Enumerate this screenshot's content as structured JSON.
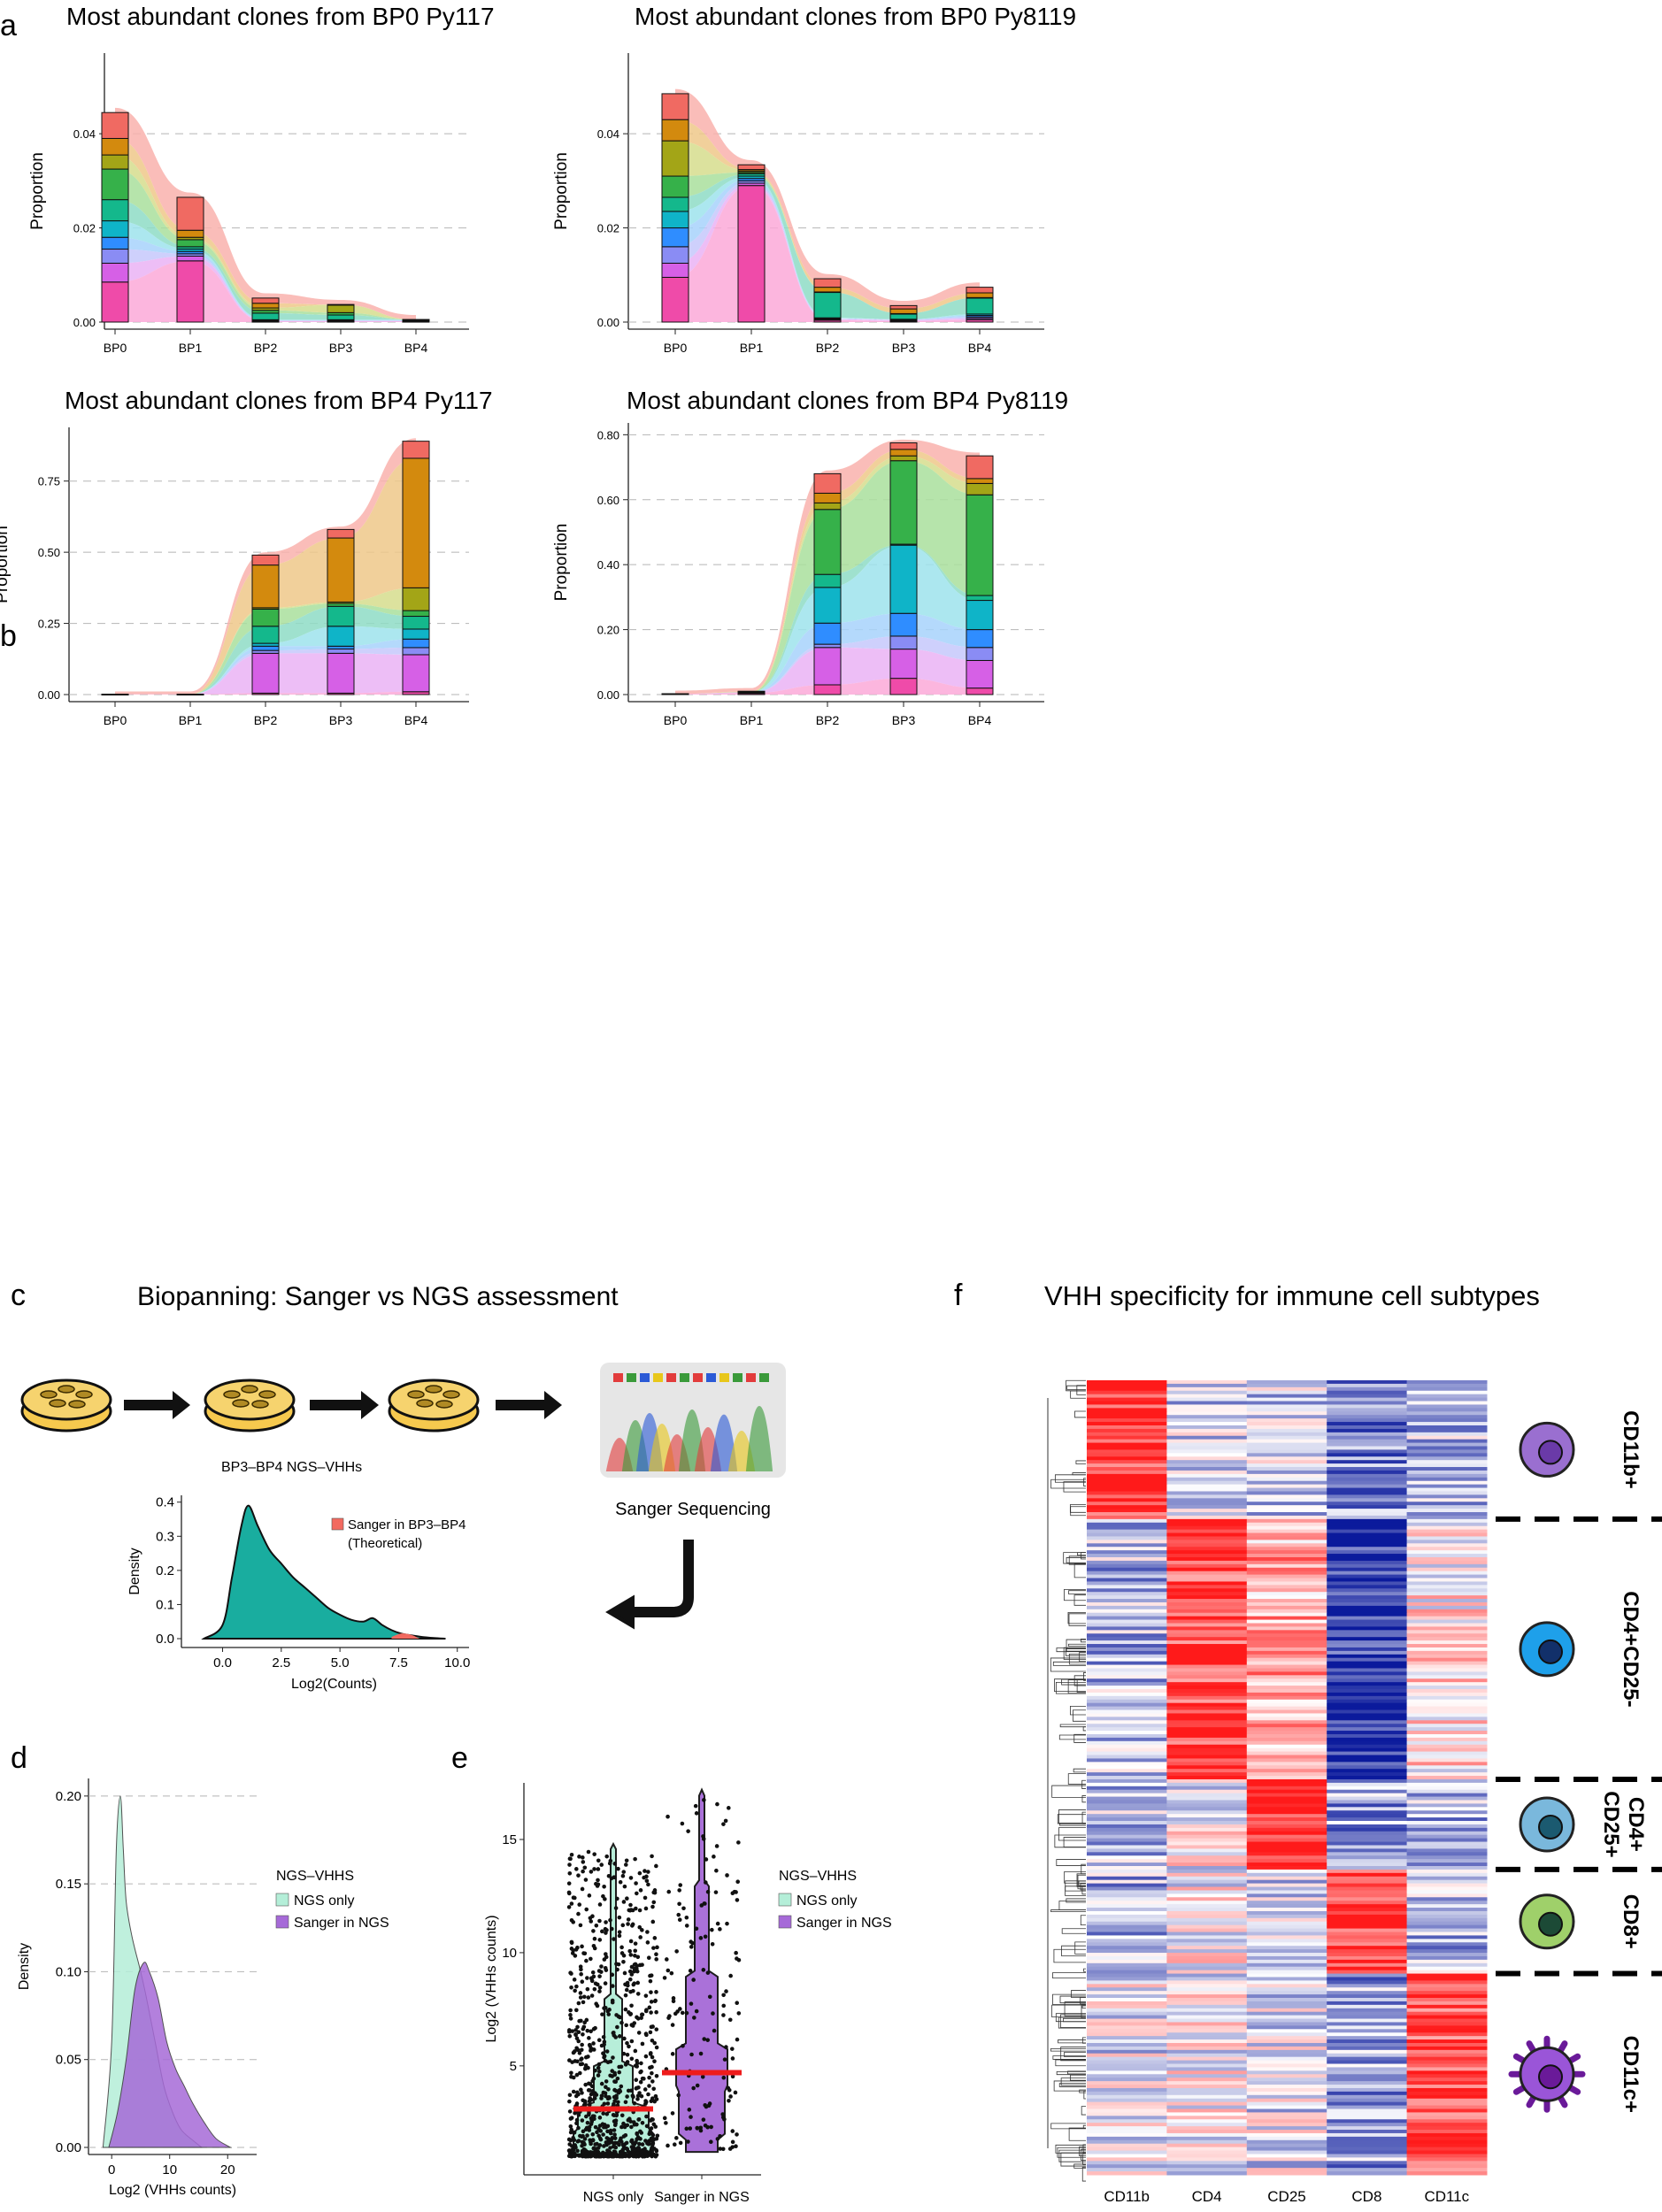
{
  "panel_letters": [
    "a",
    "b",
    "c",
    "d",
    "e",
    "f"
  ],
  "chart_data": [
    {
      "id": "a1",
      "type": "stacked-bar-alluvial",
      "title": "Most abundant clones from BP0 Py117",
      "categories": [
        "BP0",
        "BP1",
        "BP2",
        "BP3",
        "BP4"
      ],
      "ylabel": "Proportion",
      "yticks": [
        0,
        0.02,
        0.04
      ],
      "ytick_labels": [
        "0.00",
        "0.02",
        "0.04"
      ],
      "ylim": [
        0,
        0.056
      ],
      "segments": [
        [
          0.0085,
          0.004,
          0.003,
          0.0025,
          0.0035,
          0.0045,
          0.0065,
          0.003,
          0.0035,
          0.0055
        ],
        [
          0.013,
          0.001,
          0.0005,
          0.0005,
          0.0005,
          0.0005,
          0.0015,
          0.0005,
          0.0015,
          0.007
        ],
        [
          0.0001,
          0.0001,
          0.0001,
          0.0001,
          0.0001,
          0.0014,
          0.0006,
          0.0005,
          0.001,
          0.0011
        ],
        [
          0.0001,
          0.0001,
          0.0001,
          0.0001,
          0.0001,
          0.001,
          0.0005,
          0.0017,
          0.0,
          0.0
        ],
        [
          0.0001,
          0.0001,
          0.0001,
          0.0001,
          0.0001,
          0.0,
          0.0,
          0.0,
          0.0,
          0.0
        ]
      ],
      "stream_top_extra": 0.001
    },
    {
      "id": "a2",
      "type": "stacked-bar-alluvial",
      "title": "Most abundant clones from BP0 Py8119",
      "categories": [
        "BP0",
        "BP1",
        "BP2",
        "BP3",
        "BP4"
      ],
      "ylabel": "Proportion",
      "yticks": [
        0,
        0.02,
        0.04
      ],
      "ytick_labels": [
        "0.00",
        "0.02",
        "0.04"
      ],
      "ylim": [
        0,
        0.056
      ],
      "segments": [
        [
          0.0095,
          0.003,
          0.0035,
          0.004,
          0.0035,
          0.003,
          0.0045,
          0.0075,
          0.0045,
          0.0055
        ],
        [
          0.029,
          0.0005,
          0.0005,
          0.0005,
          0.0005,
          0.0005,
          0.0003,
          0.0003,
          0.0003,
          0.001
        ],
        [
          0.0004,
          0.0002,
          0.0001,
          0.0001,
          0.0001,
          0.0055,
          0.0,
          0.0,
          0.001,
          0.0018
        ],
        [
          0.0002,
          0.0002,
          0.0001,
          0.0001,
          0.0,
          0.0012,
          0.0,
          0.0,
          0.001,
          0.0007
        ],
        [
          0.0005,
          0.0003,
          0.0003,
          0.0003,
          0.0003,
          0.0035,
          0.0,
          0.0,
          0.001,
          0.0012
        ]
      ],
      "stream_top_extra": 0.001
    },
    {
      "id": "b1",
      "type": "stacked-bar-alluvial",
      "title": "Most abundant clones from BP4 Py117",
      "categories": [
        "BP0",
        "BP1",
        "BP2",
        "BP3",
        "BP4"
      ],
      "ylabel": "Proportion",
      "yticks": [
        0,
        0.25,
        0.5,
        0.75
      ],
      "ytick_labels": [
        "0.00",
        "0.25",
        "0.50",
        "0.75"
      ],
      "ylim": [
        0,
        0.92
      ],
      "segments": [
        [
          0.001,
          0.0,
          0.0,
          0.0,
          0.0,
          0.0,
          0.0,
          0.0,
          0.0,
          0.0
        ],
        [
          0.001,
          0.0,
          0.0,
          0.0,
          0.0,
          0.0,
          0.0,
          0.0,
          0.0,
          0.0
        ],
        [
          0.005,
          0.14,
          0.01,
          0.015,
          0.01,
          0.06,
          0.06,
          0.005,
          0.15,
          0.035
        ],
        [
          0.005,
          0.14,
          0.015,
          0.01,
          0.07,
          0.07,
          0.01,
          0.005,
          0.225,
          0.03
        ],
        [
          0.01,
          0.13,
          0.025,
          0.03,
          0.035,
          0.045,
          0.02,
          0.08,
          0.455,
          0.06
        ]
      ],
      "stream_top_extra": 0.01
    },
    {
      "id": "b2",
      "type": "stacked-bar-alluvial",
      "title": "Most abundant clones from BP4 Py8119",
      "categories": [
        "BP0",
        "BP1",
        "BP2",
        "BP3",
        "BP4"
      ],
      "ylabel": "Proportion",
      "yticks": [
        0,
        0.2,
        0.4,
        0.6,
        0.8
      ],
      "ytick_labels": [
        "0.00",
        "0.20",
        "0.40",
        "0.60",
        "0.80"
      ],
      "ylim": [
        0,
        0.82
      ],
      "segments": [
        [
          0.002,
          0.0,
          0.0,
          0.0,
          0.0,
          0.0,
          0.0,
          0.0,
          0.0,
          0.0
        ],
        [
          0.005,
          0.0,
          0.002,
          0.0,
          0.0,
          0.0,
          0.0,
          0.0,
          0.003,
          0.0
        ],
        [
          0.03,
          0.115,
          0.01,
          0.065,
          0.11,
          0.04,
          0.2,
          0.02,
          0.03,
          0.06
        ],
        [
          0.05,
          0.09,
          0.04,
          0.07,
          0.21,
          0.003,
          0.257,
          0.015,
          0.02,
          0.02
        ],
        [
          0.02,
          0.085,
          0.04,
          0.055,
          0.09,
          0.015,
          0.31,
          0.035,
          0.015,
          0.07
        ]
      ],
      "stream_top_extra": 0.01
    },
    {
      "id": "c",
      "type": "area",
      "title": "Biopanning: Sanger vs NGS assessment",
      "subtitle": "BP3–BP4 NGS–VHHs",
      "xlabel": "Log2(Counts)",
      "ylabel": "Density",
      "xlim": [
        -1,
        10.5
      ],
      "ylim": [
        0,
        0.42
      ],
      "xticks": [
        0,
        2.5,
        5,
        7.5,
        10
      ],
      "xtick_labels": [
        "0.0",
        "2.5",
        "5.0",
        "7.5",
        "10.0"
      ],
      "yticks": [
        0,
        0.1,
        0.2,
        0.3,
        0.4
      ],
      "ytick_labels": [
        "0.0",
        "0.1",
        "0.2",
        "0.3",
        "0.4"
      ],
      "x": [
        -0.8,
        0.0,
        0.4,
        0.8,
        1.1,
        1.5,
        2.0,
        2.5,
        3.0,
        3.5,
        4.0,
        4.5,
        5.0,
        5.5,
        6.0,
        6.4,
        6.8,
        7.2,
        7.6,
        8.0,
        8.5,
        9.0,
        9.5
      ],
      "y": [
        0.0,
        0.04,
        0.18,
        0.33,
        0.39,
        0.33,
        0.26,
        0.22,
        0.18,
        0.15,
        0.12,
        0.09,
        0.07,
        0.055,
        0.05,
        0.06,
        0.04,
        0.025,
        0.015,
        0.01,
        0.005,
        0.002,
        0.0
      ],
      "highlight": {
        "x": [
          7.2,
          7.6,
          8.0,
          8.4
        ],
        "y": [
          0.005,
          0.015,
          0.012,
          0.0
        ]
      },
      "legend": {
        "label_line1": "Sanger in BP3–BP4",
        "label_line2": "(Theoretical)",
        "color": "#f26a60"
      },
      "seq_label": "Sanger Sequencing",
      "color": "#19ad9f"
    },
    {
      "id": "d",
      "type": "area",
      "xlabel": "Log2 (VHHs counts)",
      "ylabel": "Density",
      "xlim": [
        -4,
        25
      ],
      "ylim": [
        0,
        0.21
      ],
      "xticks": [
        0,
        10,
        20
      ],
      "xtick_labels": [
        "0",
        "10",
        "20"
      ],
      "yticks": [
        0,
        0.05,
        0.1,
        0.15,
        0.2
      ],
      "ytick_labels": [
        "0.00",
        "0.05",
        "0.10",
        "0.15",
        "0.20"
      ],
      "series": [
        {
          "name": "NGS only",
          "color": "#b4eed8",
          "x": [
            -1.5,
            0,
            0.8,
            1.5,
            2.0,
            2.5,
            3.5,
            5.0,
            6.0,
            7.5,
            9.0,
            10.5,
            12,
            14,
            15.5
          ],
          "y": [
            0.0,
            0.06,
            0.17,
            0.2,
            0.17,
            0.14,
            0.12,
            0.1,
            0.085,
            0.06,
            0.035,
            0.02,
            0.01,
            0.004,
            0.0
          ]
        },
        {
          "name": "Sanger in NGS",
          "color": "#a66ad8",
          "x": [
            -0.5,
            1,
            2.5,
            4,
            5.5,
            6.5,
            8,
            9.5,
            11,
            12.5,
            14,
            16,
            18,
            20.5
          ],
          "y": [
            0.0,
            0.02,
            0.05,
            0.09,
            0.105,
            0.1,
            0.085,
            0.06,
            0.045,
            0.035,
            0.025,
            0.014,
            0.005,
            0.0
          ]
        }
      ],
      "legend_title": "NGS–VHHS"
    },
    {
      "id": "e",
      "type": "violin",
      "ylabel": "Log2 (VHHs counts)",
      "categories": [
        "NGS only",
        "Sanger in NGS"
      ],
      "ylim": [
        0.5,
        17.5
      ],
      "yticks": [
        5,
        10,
        15
      ],
      "ytick_labels": [
        "5",
        "10",
        "15"
      ],
      "medians": [
        3.1,
        4.7
      ],
      "colors": [
        "#b4eed8",
        "#a66ad8"
      ],
      "legend_title": "NGS–VHHS"
    },
    {
      "id": "f",
      "type": "heatmap",
      "title": "VHH specificity for immune cell subtypes",
      "columns": [
        "CD11b",
        "CD4",
        "CD25",
        "CD8",
        "CD11c"
      ],
      "groups": [
        {
          "label": "CD11b+",
          "label2": "",
          "rows": 40,
          "profile": [
            0.9,
            -0.2,
            -0.2,
            -0.5,
            -0.3
          ]
        },
        {
          "label": "CD4+CD25-",
          "label2": "",
          "rows": 75,
          "profile": [
            -0.3,
            0.8,
            0.4,
            -0.9,
            0.1
          ]
        },
        {
          "label": "CD4+",
          "label2": "CD25+",
          "rows": 26,
          "profile": [
            -0.3,
            0.0,
            0.9,
            -0.4,
            -0.3
          ]
        },
        {
          "label": "CD8+",
          "label2": "",
          "rows": 30,
          "profile": [
            -0.3,
            0.0,
            -0.2,
            0.9,
            -0.3
          ]
        },
        {
          "label": "CD11c+",
          "label2": "",
          "rows": 58,
          "profile": [
            -0.1,
            0.0,
            -0.1,
            -0.4,
            0.8
          ]
        }
      ],
      "colors": {
        "low": "#0b1a9c",
        "mid": "#ffffff",
        "high": "#ff1a1a"
      }
    }
  ]
}
